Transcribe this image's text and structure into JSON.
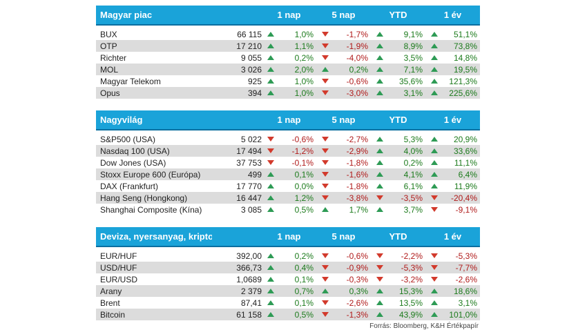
{
  "columns": [
    "1 nap",
    "5 nap",
    "YTD",
    "1 év"
  ],
  "sections": [
    {
      "title": "Magyar piac",
      "rows": [
        {
          "name": "BUX",
          "value": "66 115",
          "changes": [
            "1,0%",
            "-1,7%",
            "9,1%",
            "51,1%"
          ]
        },
        {
          "name": "OTP",
          "value": "17 210",
          "changes": [
            "1,1%",
            "-1,9%",
            "8,9%",
            "73,8%"
          ]
        },
        {
          "name": "Richter",
          "value": "9 055",
          "changes": [
            "0,2%",
            "-4,0%",
            "3,5%",
            "14,8%"
          ]
        },
        {
          "name": "MOL",
          "value": "3 026",
          "changes": [
            "2,0%",
            "0,2%",
            "7,1%",
            "19,5%"
          ]
        },
        {
          "name": "Magyar Telekom",
          "value": "925",
          "changes": [
            "1,0%",
            "-0,6%",
            "35,6%",
            "121,3%"
          ]
        },
        {
          "name": "Opus",
          "value": "394",
          "changes": [
            "1,0%",
            "-3,0%",
            "3,1%",
            "225,6%"
          ]
        }
      ]
    },
    {
      "title": "Nagyvilág",
      "rows": [
        {
          "name": "S&P500 (USA)",
          "value": "5 022",
          "changes": [
            "-0,6%",
            "-2,7%",
            "5,3%",
            "20,9%"
          ]
        },
        {
          "name": "Nasdaq 100 (USA)",
          "value": "17 494",
          "changes": [
            "-1,2%",
            "-2,9%",
            "4,0%",
            "33,6%"
          ]
        },
        {
          "name": "Dow Jones (USA)",
          "value": "37 753",
          "changes": [
            "-0,1%",
            "-1,8%",
            "0,2%",
            "11,1%"
          ]
        },
        {
          "name": "Stoxx Europe 600 (Európa)",
          "value": "499",
          "changes": [
            "0,1%",
            "-1,6%",
            "4,1%",
            "6,4%"
          ]
        },
        {
          "name": "DAX (Frankfurt)",
          "value": "17 770",
          "changes": [
            "0,0%",
            "-1,8%",
            "6,1%",
            "11,9%"
          ]
        },
        {
          "name": "Hang Seng (Hongkong)",
          "value": "16 447",
          "changes": [
            "1,2%",
            "-3,8%",
            "-3,5%",
            "-20,4%"
          ]
        },
        {
          "name": "Shanghai Composite (Kína)",
          "value": "3 085",
          "changes": [
            "0,5%",
            "1,7%",
            "3,7%",
            "-9,1%"
          ]
        }
      ]
    },
    {
      "title": "Deviza, nyersanyag, kripto",
      "rows": [
        {
          "name": "EUR/HUF",
          "value": "392,00",
          "changes": [
            "0,2%",
            "-0,6%",
            "-2,2%",
            "-5,3%"
          ]
        },
        {
          "name": "USD/HUF",
          "value": "366,73",
          "changes": [
            "0,4%",
            "-0,9%",
            "-5,3%",
            "-7,7%"
          ]
        },
        {
          "name": "EUR/USD",
          "value": "1,0689",
          "changes": [
            "0,1%",
            "-0,3%",
            "-3,2%",
            "-2,6%"
          ]
        },
        {
          "name": "Arany",
          "value": "2 379",
          "changes": [
            "0,7%",
            "0,3%",
            "15,3%",
            "18,6%"
          ]
        },
        {
          "name": "Brent",
          "value": "87,41",
          "changes": [
            "0,1%",
            "-2,6%",
            "13,5%",
            "3,1%"
          ]
        },
        {
          "name": "Bitcoin",
          "value": "61 158",
          "changes": [
            "0,5%",
            "-1,3%",
            "43,9%",
            "101,0%"
          ]
        }
      ]
    }
  ],
  "source": "Forrás: Bloomberg, K&H Értékpapír",
  "colors": {
    "header": "#1aa3d9",
    "up": "#2e9b55",
    "down": "#d23a2c",
    "stripe": "#dcdcdc"
  }
}
